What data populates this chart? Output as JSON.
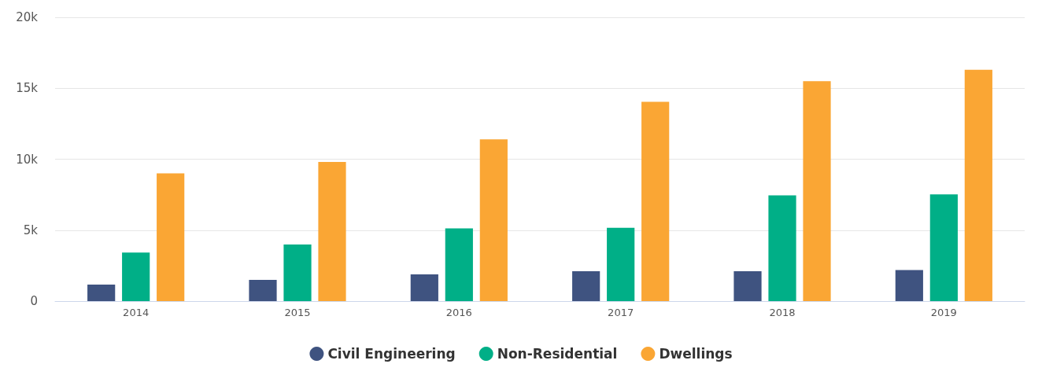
{
  "chart_data": {
    "type": "bar",
    "categories": [
      "2014",
      "2015",
      "2016",
      "2017",
      "2018",
      "2019"
    ],
    "series": [
      {
        "name": "Civil Engineering",
        "color": "#3f5380",
        "values": [
          1160,
          1490,
          1890,
          2100,
          2100,
          2190
        ]
      },
      {
        "name": "Non-Residential",
        "color": "#00af87",
        "values": [
          3420,
          3990,
          5120,
          5170,
          7450,
          7520
        ]
      },
      {
        "name": "Dwellings",
        "color": "#faa634",
        "values": [
          9000,
          9800,
          11400,
          14050,
          15500,
          16300
        ]
      }
    ],
    "ylim": [
      0,
      20000
    ],
    "yticks": [
      0,
      {
        "value": 5000,
        "label": "5k"
      },
      {
        "value": 10000,
        "label": "10k"
      },
      {
        "value": 15000,
        "label": "15k"
      },
      {
        "value": 20000,
        "label": "20k"
      }
    ],
    "grid": "y",
    "legend": "bottom"
  }
}
